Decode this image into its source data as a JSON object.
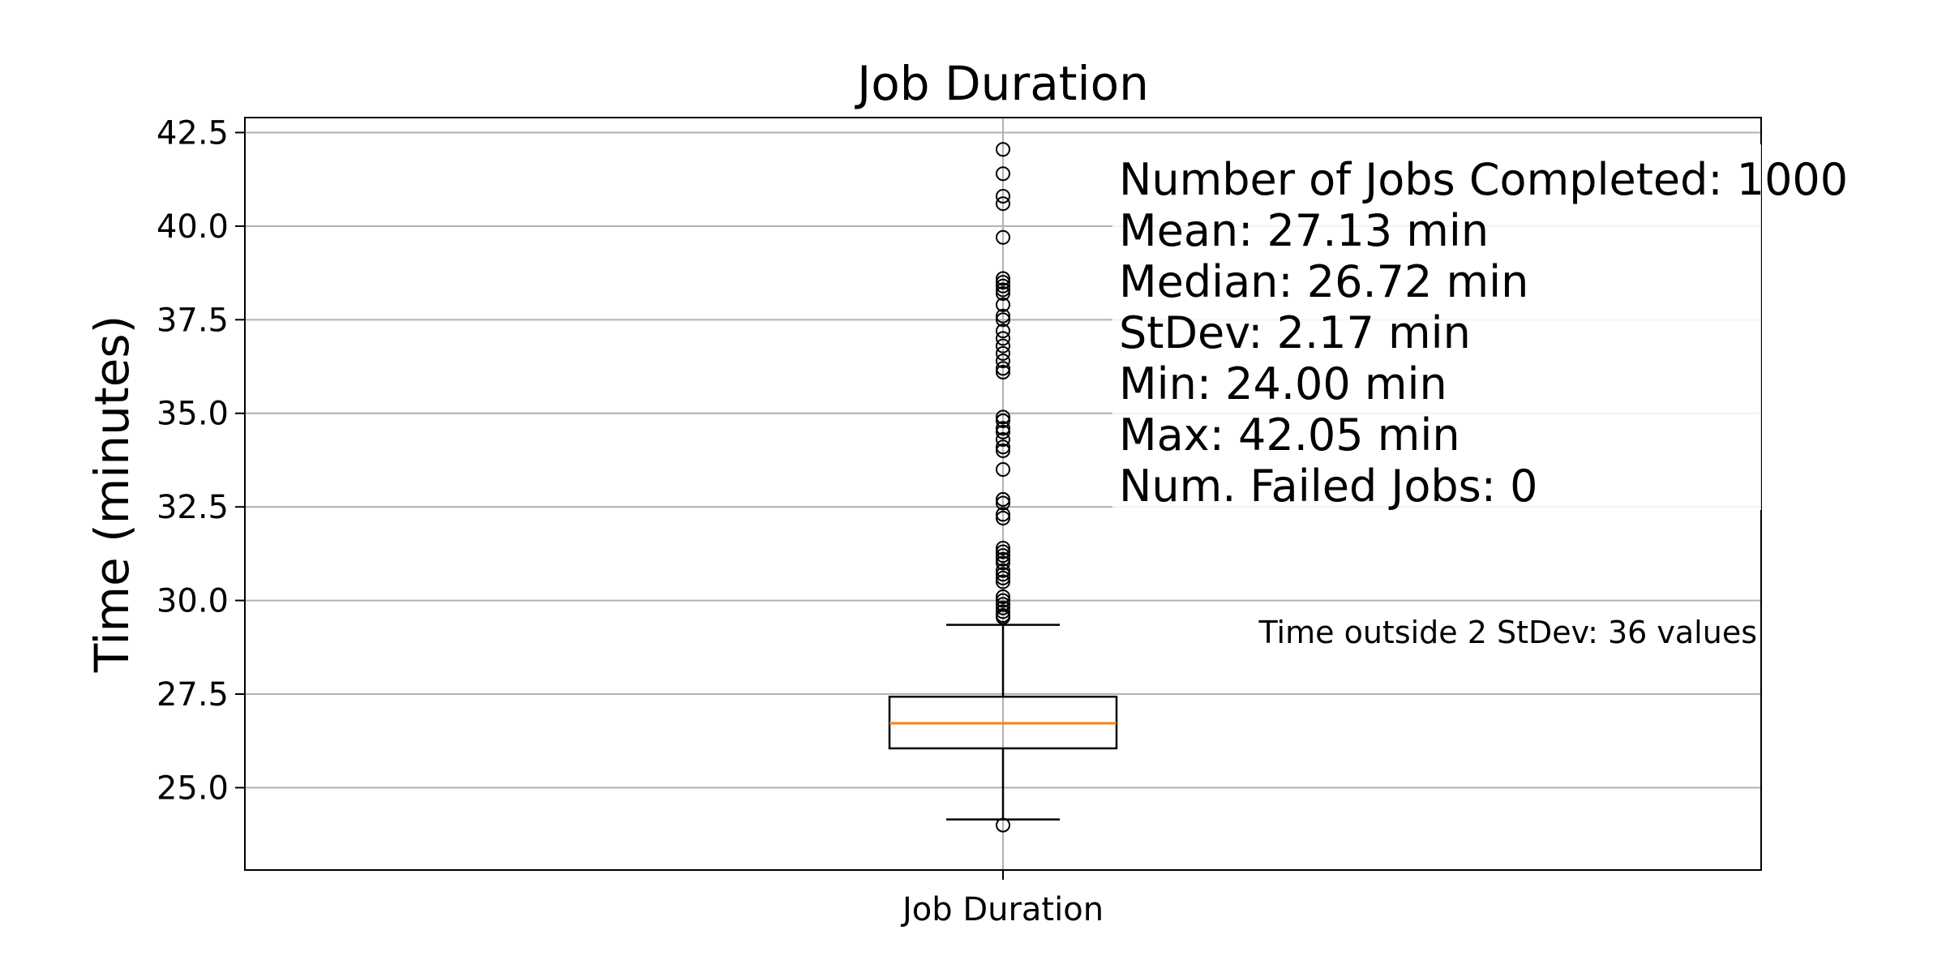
{
  "chart_data": {
    "type": "box",
    "title": "Job Duration",
    "ylabel": "Time (minutes)",
    "xlabel": "",
    "categories": [
      "Job Duration"
    ],
    "ylim": [
      22.8,
      42.9
    ],
    "yticks": [
      25.0,
      27.5,
      30.0,
      32.5,
      35.0,
      37.5,
      40.0,
      42.5
    ],
    "grid": true,
    "box": {
      "q1": 26.05,
      "median": 26.72,
      "q3": 27.43,
      "whisker_low": 24.15,
      "whisker_high": 29.35
    },
    "outliers": [
      24.0,
      29.55,
      29.6,
      29.7,
      29.8,
      29.9,
      30.0,
      30.1,
      30.5,
      30.6,
      30.7,
      30.8,
      31.0,
      31.1,
      31.2,
      31.3,
      31.4,
      32.2,
      32.3,
      32.6,
      32.7,
      33.5,
      34.0,
      34.1,
      34.3,
      34.5,
      34.6,
      34.8,
      34.9,
      36.1,
      36.2,
      36.4,
      36.6,
      36.8,
      37.0,
      37.2,
      37.5,
      37.6,
      37.9,
      38.2,
      38.3,
      38.4,
      38.5,
      38.6,
      39.7,
      40.6,
      40.8,
      41.4,
      42.05
    ],
    "stats_lines": [
      "Number of Jobs Completed: 1000",
      "Mean: 27.13 min",
      "Median: 26.72 min",
      "StDev: 2.17 min",
      "Min: 24.00 min",
      "Max: 42.05 min",
      "Num. Failed Jobs: 0"
    ],
    "annotation": "Time outside 2 StDev: 36 values",
    "colors": {
      "median": "#ff7f0e",
      "annotation": "#800080",
      "grid": "#b0b0b0"
    }
  }
}
